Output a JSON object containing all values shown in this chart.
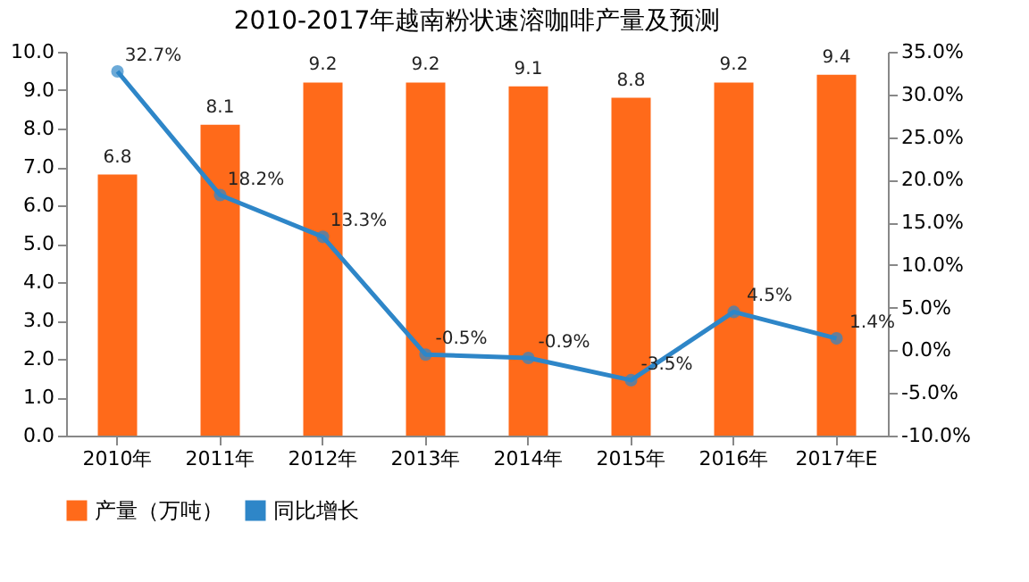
{
  "chart_data": {
    "type": "bar",
    "title": "2010-2017年越南粉状速溶咖啡产量及预测",
    "categories": [
      "2010年",
      "2011年",
      "2012年",
      "2013年",
      "2014年",
      "2015年",
      "2016年",
      "2017年E"
    ],
    "series": [
      {
        "name": "产量（万吨）",
        "color": "#ff6a1a",
        "values": [
          6.8,
          8.1,
          9.2,
          9.2,
          9.1,
          8.8,
          9.2,
          9.4
        ],
        "value_labels": [
          "6.8",
          "8.1",
          "9.2",
          "9.2",
          "9.1",
          "8.8",
          "9.2",
          "9.4"
        ]
      },
      {
        "name": "同比增长",
        "type": "line",
        "axis": "y2",
        "color": "#2e86c8",
        "marker": "circle",
        "values": [
          32.7,
          18.2,
          13.3,
          -0.5,
          -0.9,
          -3.5,
          4.5,
          1.4
        ],
        "value_labels": [
          "32.7%",
          "18.2%",
          "13.3%",
          "-0.5%",
          "-0.9%",
          "-3.5%",
          "4.5%",
          "1.4%"
        ]
      }
    ],
    "ylim": [
      0,
      10
    ],
    "yticks": [
      {
        "value": 0,
        "label": "0.0"
      },
      {
        "value": 1,
        "label": "1.0"
      },
      {
        "value": 2,
        "label": "2.0"
      },
      {
        "value": 3,
        "label": "3.0"
      },
      {
        "value": 4,
        "label": "4.0"
      },
      {
        "value": 5,
        "label": "5.0"
      },
      {
        "value": 6,
        "label": "6.0"
      },
      {
        "value": 7,
        "label": "7.0"
      },
      {
        "value": 8,
        "label": "8.0"
      },
      {
        "value": 9,
        "label": "9.0"
      },
      {
        "value": 10,
        "label": "10.0"
      }
    ],
    "y2lim": [
      -10,
      35
    ],
    "y2ticks": [
      {
        "value": -10,
        "label": "-10.0%"
      },
      {
        "value": -5,
        "label": "-5.0%"
      },
      {
        "value": 0,
        "label": "0.0%"
      },
      {
        "value": 5,
        "label": "5.0%"
      },
      {
        "value": 10,
        "label": "10.0%"
      },
      {
        "value": 15,
        "label": "15.0%"
      },
      {
        "value": 20,
        "label": "20.0%"
      },
      {
        "value": 25,
        "label": "25.0%"
      },
      {
        "value": 30,
        "label": "30.0%"
      },
      {
        "value": 35,
        "label": "35.0%"
      }
    ],
    "legend": "bottom",
    "grid": false
  }
}
